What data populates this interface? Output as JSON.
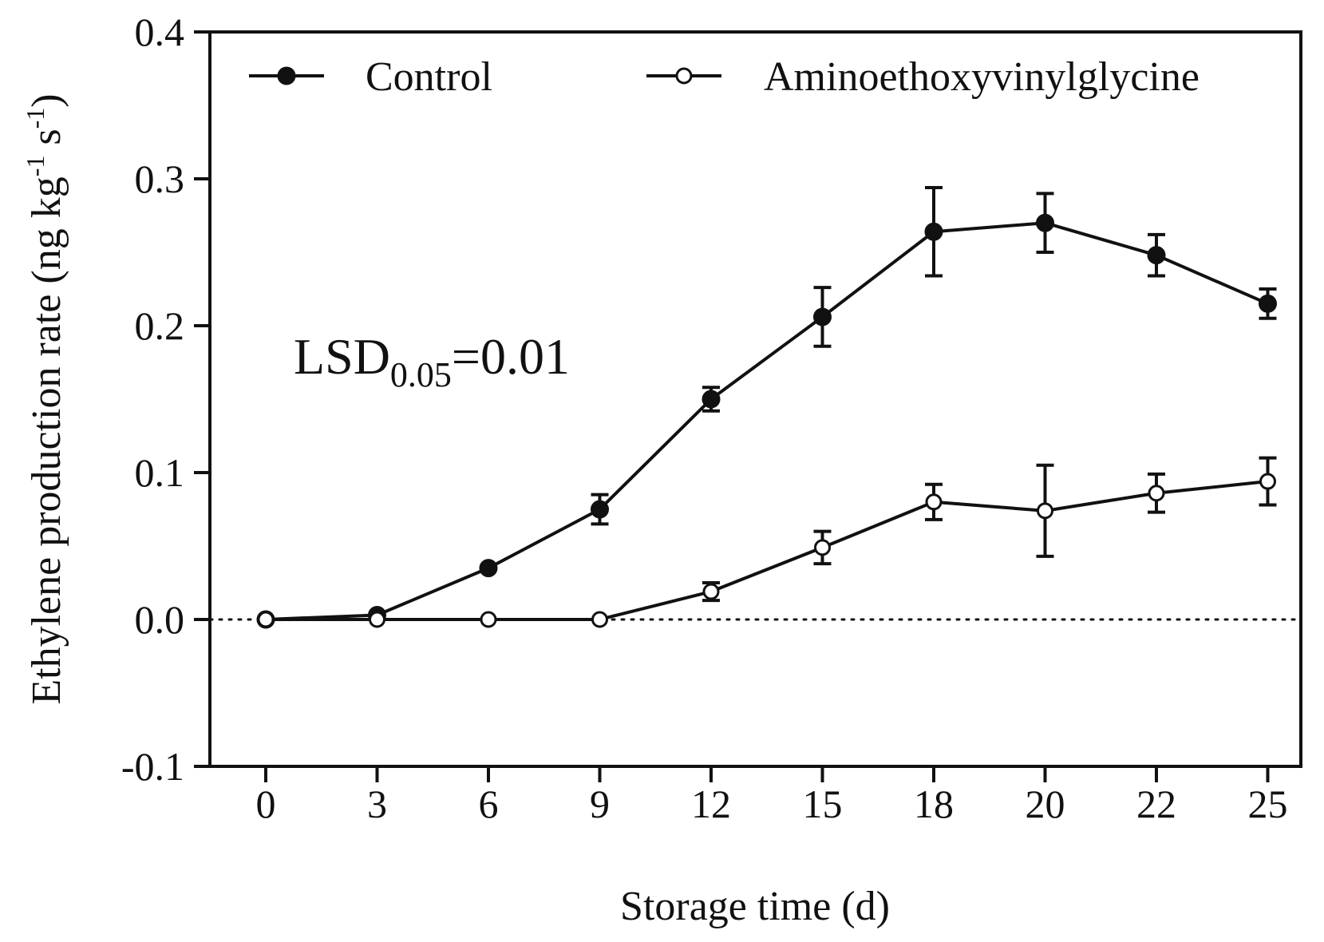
{
  "chart_data": {
    "type": "line",
    "x": [
      "0",
      "3",
      "6",
      "9",
      "12",
      "15",
      "18",
      "20",
      "22",
      "25"
    ],
    "xlabel": "Storage time (d)",
    "ylabel": {
      "prefix": "Ethylene production rate (ng kg",
      "sup1": "-1",
      "mid": " s",
      "sup2": "-1",
      "suffix": ")"
    },
    "ylim": [
      -0.1,
      0.4
    ],
    "yticks": [
      "-0.1",
      "0.0",
      "0.1",
      "0.2",
      "0.3",
      "0.4"
    ],
    "reference_line": 0.0,
    "grid": false,
    "legend_position": "top",
    "series": [
      {
        "name": "Control",
        "marker": "filled-circle",
        "values": [
          0.0,
          0.003,
          0.035,
          0.075,
          0.15,
          0.206,
          0.264,
          0.27,
          0.248,
          0.215
        ],
        "errors": [
          0.0,
          0.0,
          0.0,
          0.01,
          0.008,
          0.02,
          0.03,
          0.02,
          0.014,
          0.01
        ]
      },
      {
        "name": "Aminoethoxyvinylglycine",
        "marker": "open-circle",
        "values": [
          0.0,
          0.0,
          0.0,
          0.0,
          0.019,
          0.049,
          0.08,
          0.074,
          0.086,
          0.094
        ],
        "errors": [
          0.0,
          0.0,
          0.0,
          0.0,
          0.006,
          0.011,
          0.012,
          0.031,
          0.013,
          0.016
        ]
      }
    ],
    "annotation": {
      "main": "LSD",
      "sub": "0.05",
      "rest": "=0.01"
    }
  }
}
